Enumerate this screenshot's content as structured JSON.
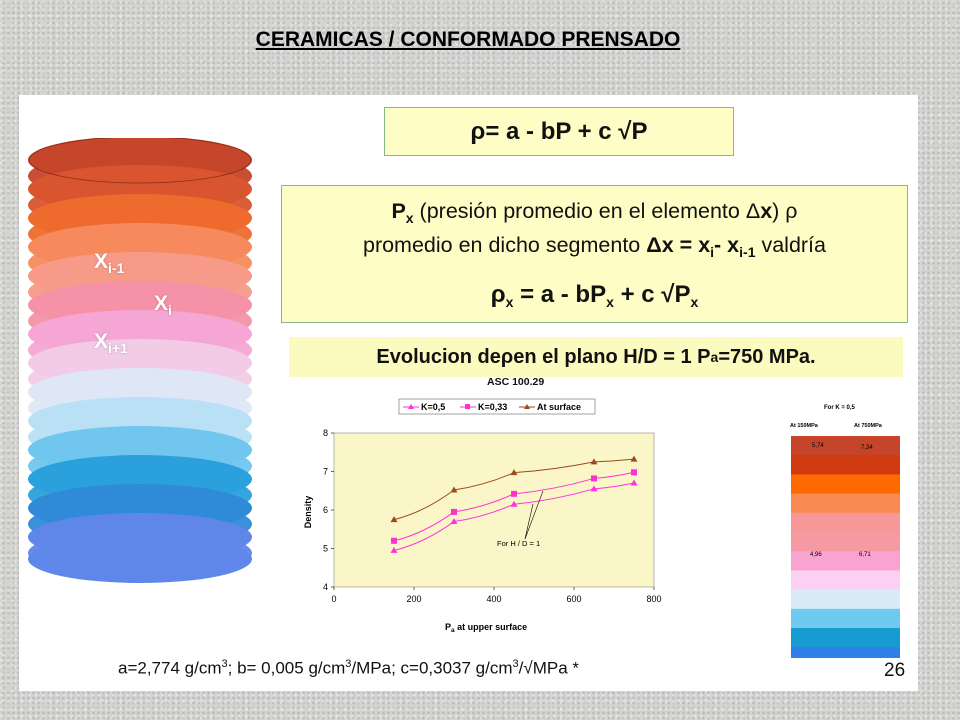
{
  "slide": {
    "title": "CERAMICAS / CONFORMADO PRENSADO",
    "page_number": "26",
    "formula_main": {
      "text": "ρ= a - bP + c √P"
    },
    "explanation": {
      "line1_px": "P",
      "line1_sub": "x",
      "line1_rest": " (presión promedio en el elemento ",
      "delta": "Δ",
      "x_bold": "x",
      "line1_end": ") ρ",
      "line2_a": "promedio en dicho segmento ",
      "line2_dx": "Δx",
      "line2_eq": " = ",
      "line2_xi": "x",
      "line2_xi_sub": "i",
      "line2_minus": "- x",
      "line2_xi1_sub": "i-1",
      "line2_end": " valdría",
      "line3_rho": "ρ",
      "line3_sub": "x",
      "line3_mid": " = a - bP",
      "line3_sub2": "x",
      "line3_end": " + c √P",
      "line3_sub3": "x"
    },
    "evolution": {
      "a": "Evolucion de ",
      "rho": "ρ",
      "b": " en el plano H/D = 1 P",
      "sub": "a",
      "c": "=750 MPa."
    },
    "asc_label": "ASC 100.29",
    "constants": {
      "a": "a=2,774 g/cm",
      "a_sup": "3",
      "b": "; b= 0,005 g/cm",
      "b_sup": "3",
      "b2": "/MPa; c=0,3037 g/cm",
      "c_sup": "3",
      "c2": "/√MPa *"
    }
  },
  "cylinder": {
    "labels": [
      {
        "base": "X",
        "sub": "i-1"
      },
      {
        "base": "X",
        "sub": "i"
      },
      {
        "base": "X",
        "sub": "i+1"
      }
    ],
    "layer_colors": [
      "#c5462a",
      "#d9552f",
      "#ee6a2d",
      "#f68a5d",
      "#f79a88",
      "#f592a8",
      "#f6a6d4",
      "#f2cbe6",
      "#dfe7f7",
      "#b9e0f5",
      "#70c6ee",
      "#2aa0dc",
      "#2f8ad8",
      "#5f87ea"
    ]
  },
  "chart_data": {
    "type": "line",
    "x": [
      150,
      300,
      450,
      650,
      750
    ],
    "series": [
      {
        "name": "K=0,5",
        "values": [
          4.95,
          5.7,
          6.15,
          6.55,
          6.7
        ],
        "color": "#ff33dd",
        "marker": "triangle"
      },
      {
        "name": "K=0,33",
        "values": [
          5.2,
          5.95,
          6.42,
          6.82,
          6.98
        ],
        "color": "#ff33cc",
        "marker": "square"
      },
      {
        "name": "At surface",
        "values": [
          5.75,
          6.52,
          6.97,
          7.25,
          7.32
        ],
        "color": "#9a4a1c",
        "marker": "triangle"
      }
    ],
    "xlabel_base": "P",
    "xlabel_sub": "a",
    "xlabel_rest": " at upper surface",
    "ylabel": "Density",
    "xlim": [
      0,
      800
    ],
    "ylim": [
      4,
      8
    ],
    "xticks": [
      0,
      200,
      400,
      600,
      800
    ],
    "yticks": [
      4,
      5,
      6,
      7,
      8
    ],
    "annotation": "For H / D = 1",
    "background": "#fbf6c8",
    "legend_placement": "top"
  },
  "color_scale": {
    "title": "For K = 0,5",
    "col1_header": "At 150MPa",
    "col2_header": "At 750MPa",
    "top_values": [
      "5,74",
      "7,34"
    ],
    "bottom_values": [
      "4,96",
      "6,71"
    ],
    "band_colors": [
      "#c5442a",
      "#cf3a10",
      "#ff6a00",
      "#f88a52",
      "#f69898",
      "#f59aa2",
      "#f9a4d0",
      "#fbd0f3",
      "#d8ebf6",
      "#6fcaf0",
      "#169bd3",
      "#2f7fe8"
    ]
  }
}
